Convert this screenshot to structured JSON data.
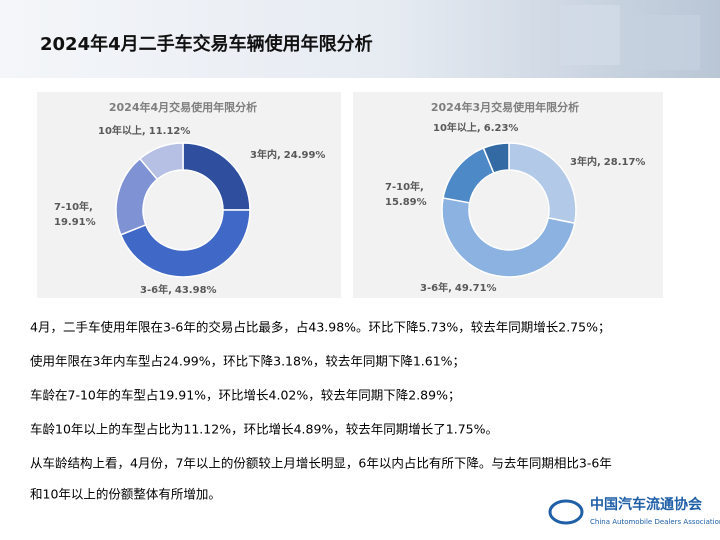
{
  "title": "2024年4月二手车交易车辆使用年限分析",
  "chart_data": [
    {
      "type": "donut",
      "title": "2024年4月交易使用年限分析",
      "categories": [
        "3年内",
        "3-6年",
        "7-10年",
        "10年以上"
      ],
      "values": [
        24.99,
        43.98,
        19.91,
        11.12
      ],
      "value_labels": [
        "24.99%",
        "43.98%",
        "19.91%",
        "11.12%"
      ],
      "colors": [
        "#2f4f9e",
        "#4068c6",
        "#7f93d4",
        "#b6c0e4"
      ]
    },
    {
      "type": "donut",
      "title": "2024年3月交易使用年限分析",
      "categories": [
        "3年内",
        "3-6年",
        "7-10年",
        "10年以上"
      ],
      "values": [
        28.17,
        49.71,
        15.89,
        6.23
      ],
      "value_labels": [
        "28.17%",
        "49.71%",
        "15.89%",
        "6.23%"
      ],
      "colors": [
        "#b3c9e8",
        "#8bb2e0",
        "#4d88c7",
        "#336aa4"
      ]
    }
  ],
  "paragraphs": [
    "4月，二手车使用年限在3-6年的交易占比最多，占43.98%。环比下降5.73%，较去年同期增长2.75%；",
    "使用年限在3年内车型占24.99%，环比下降3.18%，较去年同期下降1.61%；",
    "车龄在7-10年的车型占19.91%，环比增长4.02%，较去年同期下降2.89%；",
    "车龄10年以上的车型占比为11.12%，环比增长4.89%，较去年同期增长了1.75%。",
    "从车龄结构上看，4月份，7年以上的份额较上月增长明显，6年以内占比有所下降。与去年同期相比3-6年",
    "和10年以上的份额整体有所增加。"
  ],
  "logo": {
    "name": "中国汽车流通协会",
    "english": "China Automobile Dealers Association"
  }
}
